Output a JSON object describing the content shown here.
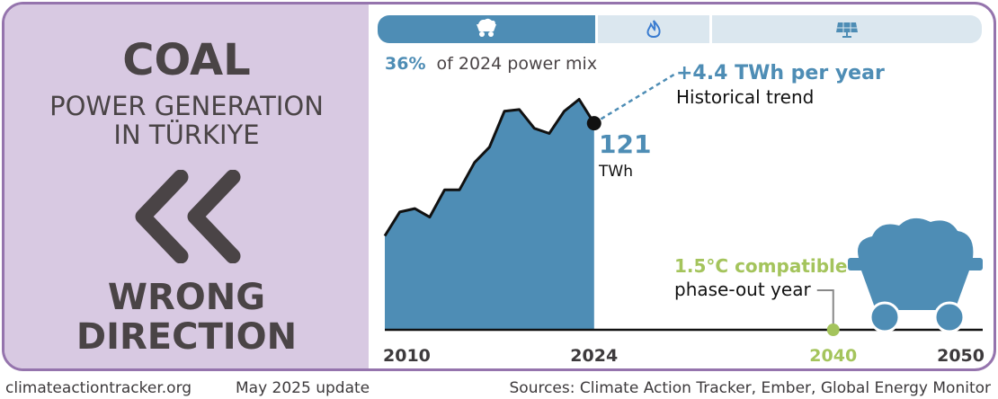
{
  "left_panel": {
    "title": "COAL",
    "subtitle_line1": "POWER GENERATION",
    "subtitle_line2": "IN TÜRKIYE",
    "verdict_line1": "WRONG",
    "verdict_line2": "DIRECTION",
    "arrow_icon": "double-chevron-left-icon"
  },
  "tabs": [
    {
      "icon": "coal-cart-icon",
      "active": true
    },
    {
      "icon": "flame-icon",
      "active": false
    },
    {
      "icon": "solar-panel-icon",
      "active": false
    }
  ],
  "colors": {
    "primary": "#4e8db5",
    "green": "#a4c45c",
    "purple": "#9574ad",
    "panel": "#d8c9e2",
    "tab_inactive": "#dbe7ef"
  },
  "chart_data": {
    "type": "area",
    "title": "Coal power generation in Türkiye",
    "unit": "TWh",
    "x": [
      2010,
      2011,
      2012,
      2013,
      2014,
      2015,
      2016,
      2017,
      2018,
      2019,
      2020,
      2021,
      2022,
      2023,
      2024
    ],
    "values": [
      55,
      69,
      71,
      66,
      82,
      82,
      98,
      107,
      128,
      129,
      118,
      115,
      128,
      135,
      121
    ],
    "last_value": "121",
    "last_value_unit": "TWh",
    "share_value": "36%",
    "share_text": "of 2024 power mix",
    "trend_value": "+4.4 TWh per year",
    "trend_label": "Historical trend",
    "phaseout_value": "1.5°C compatible",
    "phaseout_label": "phase-out year",
    "phaseout_year": "2040",
    "xlim": [
      2010,
      2050
    ],
    "x_ticks": [
      "2010",
      "2024",
      "2040",
      "2050"
    ]
  },
  "footer": {
    "website": "climateactiontracker.org",
    "update": "May 2025 update",
    "sources": "Sources: Climate Action Tracker, Ember, Global Energy Monitor"
  }
}
